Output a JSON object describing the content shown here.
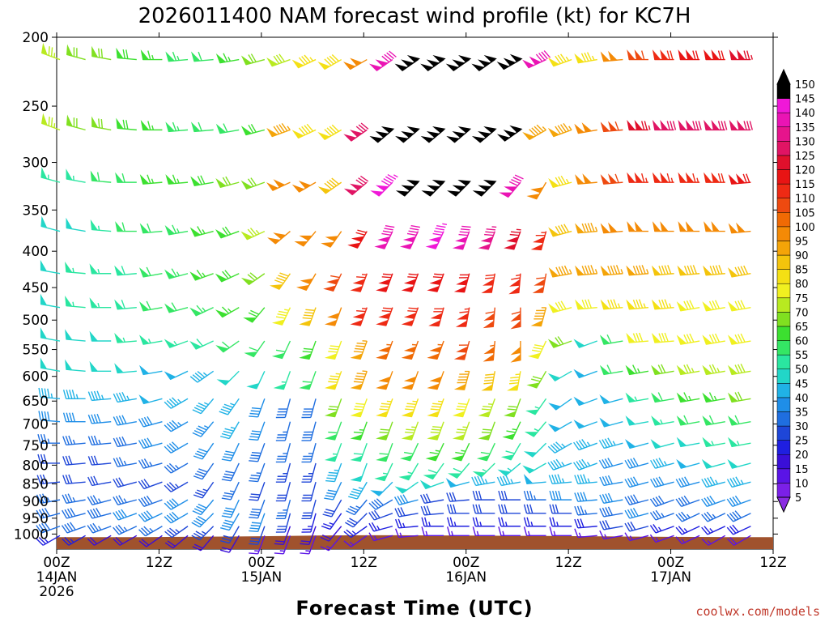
{
  "chart_data": {
    "type": "wind-barb",
    "title": "2026011400 NAM forecast wind profile (kt) for KC7H",
    "xlabel": "Forecast Time (UTC)",
    "credit": "coolwx.com/models",
    "y_ticks": [
      "200",
      "250",
      "300",
      "350",
      "400",
      "450",
      "500",
      "550",
      "600",
      "650",
      "700",
      "750",
      "800",
      "850",
      "900",
      "950",
      "1000"
    ],
    "y_values": [
      200,
      250,
      300,
      350,
      400,
      450,
      500,
      550,
      600,
      650,
      700,
      750,
      800,
      850,
      900,
      950,
      1000
    ],
    "x_ticks": [
      {
        "hour": 0,
        "label": "00Z",
        "date": "14JAN",
        "year": "2026"
      },
      {
        "hour": 12,
        "label": "12Z",
        "date": "",
        "year": ""
      },
      {
        "hour": 24,
        "label": "00Z",
        "date": "15JAN",
        "year": ""
      },
      {
        "hour": 36,
        "label": "12Z",
        "date": "",
        "year": ""
      },
      {
        "hour": 48,
        "label": "00Z",
        "date": "16JAN",
        "year": ""
      },
      {
        "hour": 60,
        "label": "12Z",
        "date": "",
        "year": ""
      },
      {
        "hour": 72,
        "label": "00Z",
        "date": "17JAN",
        "year": ""
      },
      {
        "hour": 84,
        "label": "12Z",
        "date": "",
        "year": ""
      }
    ],
    "xlim": [
      0,
      84
    ],
    "colorbar": {
      "levels": [
        5,
        10,
        15,
        20,
        25,
        30,
        35,
        40,
        45,
        50,
        55,
        60,
        65,
        70,
        75,
        80,
        85,
        90,
        95,
        100,
        105,
        110,
        115,
        120,
        125,
        130,
        135,
        140,
        145,
        150
      ],
      "colors": [
        "#8a2be2",
        "#7b20e8",
        "#5a14e6",
        "#3a0fd8",
        "#1f1fe0",
        "#1e46d8",
        "#1f6ee0",
        "#1f8ee8",
        "#20b2e6",
        "#22d6c8",
        "#2ae6a0",
        "#34e664",
        "#3ce030",
        "#80e020",
        "#b8ea20",
        "#f0f020",
        "#f4e014",
        "#f4c40c",
        "#f4a408",
        "#f48a06",
        "#f06a04",
        "#ee4a10",
        "#ee2a14",
        "#e81414",
        "#e0102c",
        "#e01464",
        "#e6148c",
        "#ea14b4",
        "#f018d8",
        "#000000"
      ]
    },
    "terrain_color": "#a0522d",
    "series_note": "Wind barbs at 3-hour steps across pressure levels 200-1000 mb",
    "barbs": {
      "hours": [
        0,
        3,
        6,
        9,
        12,
        15,
        18,
        21,
        24,
        27,
        30,
        33,
        36,
        39,
        42,
        45,
        48,
        51,
        54,
        57,
        60,
        63,
        66,
        69,
        72,
        75,
        78,
        81,
        84
      ],
      "levels": [
        215,
        270,
        320,
        375,
        430,
        480,
        535,
        590,
        645,
        695,
        745,
        795,
        845,
        895,
        935,
        975,
        1005
      ],
      "speed": [
        [
          75,
          70,
          70,
          68,
          65,
          63,
          60,
          65,
          70,
          78,
          85,
          88,
          100,
          140,
          150,
          150,
          150,
          150,
          150,
          140,
          85,
          85,
          100,
          110,
          118,
          120,
          122,
          125,
          120
        ],
        [
          75,
          70,
          70,
          68,
          65,
          63,
          60,
          60,
          68,
          95,
          88,
          88,
          130,
          150,
          150,
          150,
          150,
          150,
          150,
          95,
          95,
          100,
          110,
          125,
          130,
          130,
          130,
          132,
          135
        ],
        [
          55,
          55,
          60,
          62,
          65,
          66,
          68,
          70,
          72,
          100,
          100,
          90,
          130,
          145,
          150,
          150,
          150,
          150,
          140,
          100,
          85,
          100,
          110,
          115,
          115,
          115,
          118,
          120,
          120
        ],
        [
          50,
          50,
          55,
          60,
          62,
          64,
          66,
          68,
          75,
          100,
          100,
          100,
          120,
          140,
          140,
          145,
          140,
          135,
          125,
          115,
          90,
          95,
          100,
          100,
          100,
          100,
          100,
          100,
          100
        ],
        [
          50,
          55,
          55,
          58,
          62,
          64,
          66,
          68,
          72,
          92,
          100,
          110,
          115,
          120,
          120,
          120,
          120,
          118,
          115,
          110,
          95,
          95,
          95,
          95,
          90,
          90,
          90,
          90,
          90
        ],
        [
          50,
          55,
          55,
          58,
          60,
          62,
          64,
          66,
          68,
          84,
          90,
          100,
          115,
          118,
          118,
          118,
          115,
          112,
          110,
          95,
          80,
          80,
          85,
          85,
          85,
          80,
          80,
          80,
          80
        ],
        [
          50,
          50,
          52,
          55,
          55,
          56,
          58,
          60,
          60,
          60,
          68,
          80,
          95,
          105,
          105,
          105,
          110,
          105,
          100,
          80,
          70,
          50,
          60,
          80,
          80,
          80,
          80,
          80,
          80
        ],
        [
          50,
          50,
          50,
          50,
          48,
          48,
          46,
          50,
          52,
          55,
          60,
          85,
          95,
          100,
          100,
          100,
          95,
          90,
          85,
          70,
          50,
          48,
          60,
          65,
          70,
          75,
          75,
          78,
          80
        ],
        [
          45,
          45,
          45,
          45,
          48,
          46,
          45,
          45,
          40,
          38,
          38,
          70,
          80,
          85,
          85,
          85,
          80,
          75,
          70,
          55,
          48,
          48,
          48,
          55,
          60,
          65,
          65,
          70,
          70
        ],
        [
          40,
          40,
          40,
          40,
          42,
          44,
          44,
          45,
          40,
          36,
          38,
          60,
          65,
          70,
          75,
          78,
          75,
          70,
          65,
          55,
          48,
          48,
          48,
          50,
          55,
          60,
          60,
          60,
          60
        ],
        [
          35,
          35,
          35,
          38,
          40,
          40,
          40,
          40,
          38,
          35,
          36,
          55,
          58,
          60,
          62,
          65,
          65,
          62,
          58,
          50,
          45,
          45,
          45,
          48,
          50,
          52,
          55,
          55,
          55
        ],
        [
          32,
          32,
          32,
          35,
          35,
          36,
          38,
          38,
          35,
          34,
          34,
          45,
          50,
          55,
          56,
          58,
          58,
          56,
          54,
          50,
          45,
          45,
          42,
          42,
          45,
          48,
          50,
          50,
          52
        ],
        [
          30,
          30,
          30,
          30,
          32,
          34,
          34,
          35,
          30,
          32,
          30,
          40,
          45,
          48,
          50,
          52,
          48,
          45,
          45,
          48,
          45,
          45,
          42,
          40,
          40,
          42,
          45,
          45,
          48
        ],
        [
          35,
          35,
          35,
          36,
          38,
          40,
          40,
          40,
          38,
          35,
          30,
          30,
          35,
          38,
          40,
          30,
          30,
          30,
          32,
          35,
          40,
          40,
          40,
          38,
          38,
          38,
          40,
          40,
          42
        ],
        [
          38,
          38,
          38,
          40,
          40,
          42,
          42,
          40,
          40,
          30,
          25,
          25,
          30,
          32,
          30,
          30,
          30,
          30,
          30,
          30,
          32,
          35,
          38,
          40,
          35,
          35,
          35,
          38,
          40
        ],
        [
          38,
          38,
          36,
          36,
          36,
          34,
          34,
          30,
          30,
          20,
          20,
          20,
          25,
          25,
          25,
          25,
          25,
          25,
          25,
          25,
          25,
          28,
          30,
          30,
          25,
          25,
          25,
          28,
          30
        ],
        [
          25,
          25,
          22,
          22,
          22,
          22,
          20,
          20,
          15,
          15,
          15,
          15,
          15,
          15,
          15,
          15,
          15,
          15,
          15,
          15,
          15,
          15,
          15,
          15,
          15,
          15,
          15,
          18,
          20
        ]
      ],
      "direction": [
        [
          290,
          285,
          280,
          275,
          270,
          265,
          265,
          260,
          255,
          250,
          245,
          240,
          240,
          235,
          235,
          235,
          235,
          235,
          240,
          245,
          250,
          260,
          265,
          270,
          270,
          270,
          270,
          270,
          270
        ],
        [
          290,
          285,
          280,
          275,
          270,
          265,
          265,
          260,
          255,
          250,
          245,
          240,
          235,
          230,
          230,
          230,
          230,
          230,
          235,
          240,
          250,
          260,
          265,
          270,
          270,
          270,
          270,
          270,
          270
        ],
        [
          285,
          280,
          275,
          270,
          265,
          265,
          260,
          255,
          250,
          245,
          240,
          235,
          230,
          225,
          225,
          225,
          225,
          225,
          220,
          210,
          255,
          265,
          265,
          270,
          270,
          270,
          270,
          265,
          265
        ],
        [
          285,
          280,
          275,
          270,
          265,
          260,
          255,
          250,
          245,
          230,
          220,
          215,
          210,
          205,
          205,
          205,
          200,
          200,
          200,
          195,
          255,
          265,
          265,
          270,
          270,
          270,
          270,
          265,
          265
        ],
        [
          280,
          275,
          270,
          265,
          260,
          255,
          250,
          245,
          235,
          215,
          210,
          205,
          200,
          200,
          200,
          200,
          195,
          190,
          185,
          190,
          260,
          265,
          265,
          265,
          265,
          265,
          265,
          260,
          260
        ],
        [
          280,
          275,
          270,
          265,
          260,
          255,
          245,
          240,
          220,
          205,
          200,
          200,
          200,
          200,
          200,
          195,
          190,
          185,
          180,
          195,
          255,
          265,
          265,
          265,
          265,
          260,
          260,
          260,
          260
        ],
        [
          280,
          275,
          270,
          265,
          260,
          250,
          245,
          235,
          215,
          205,
          200,
          200,
          200,
          200,
          200,
          200,
          195,
          185,
          180,
          205,
          250,
          250,
          260,
          265,
          265,
          260,
          260,
          260,
          260
        ],
        [
          280,
          275,
          270,
          265,
          260,
          245,
          235,
          225,
          205,
          200,
          200,
          200,
          200,
          200,
          200,
          200,
          195,
          190,
          190,
          210,
          240,
          250,
          260,
          260,
          260,
          260,
          260,
          260,
          260
        ],
        [
          275,
          270,
          265,
          260,
          255,
          240,
          220,
          215,
          200,
          195,
          195,
          200,
          200,
          200,
          200,
          200,
          200,
          200,
          200,
          215,
          235,
          250,
          255,
          260,
          260,
          260,
          260,
          260,
          260
        ],
        [
          275,
          270,
          265,
          260,
          255,
          240,
          220,
          210,
          200,
          195,
          195,
          200,
          200,
          200,
          200,
          200,
          200,
          200,
          205,
          220,
          240,
          250,
          255,
          260,
          260,
          260,
          260,
          260,
          260
        ],
        [
          270,
          265,
          265,
          260,
          255,
          240,
          215,
          205,
          200,
          195,
          195,
          200,
          200,
          200,
          205,
          205,
          205,
          205,
          210,
          225,
          240,
          250,
          255,
          255,
          255,
          260,
          260,
          260,
          260
        ],
        [
          270,
          265,
          265,
          260,
          255,
          240,
          215,
          205,
          200,
          195,
          195,
          200,
          200,
          205,
          210,
          215,
          220,
          225,
          230,
          240,
          250,
          250,
          255,
          255,
          255,
          255,
          255,
          255,
          260
        ],
        [
          265,
          265,
          260,
          255,
          250,
          240,
          215,
          205,
          200,
          195,
          195,
          205,
          210,
          225,
          235,
          250,
          255,
          260,
          260,
          265,
          265,
          265,
          260,
          255,
          255,
          255,
          255,
          255,
          255
        ],
        [
          260,
          260,
          255,
          255,
          250,
          240,
          220,
          205,
          200,
          195,
          195,
          210,
          220,
          240,
          255,
          260,
          265,
          270,
          270,
          270,
          270,
          265,
          260,
          255,
          250,
          250,
          250,
          250,
          250
        ],
        [
          255,
          255,
          255,
          250,
          245,
          240,
          225,
          210,
          200,
          195,
          195,
          215,
          225,
          250,
          260,
          265,
          270,
          270,
          270,
          270,
          270,
          265,
          260,
          255,
          250,
          245,
          245,
          245,
          245
        ],
        [
          250,
          250,
          250,
          245,
          240,
          235,
          225,
          210,
          200,
          200,
          200,
          220,
          235,
          255,
          265,
          270,
          270,
          270,
          270,
          270,
          270,
          265,
          260,
          255,
          250,
          245,
          245,
          245,
          245
        ],
        [
          240,
          240,
          240,
          240,
          235,
          230,
          220,
          210,
          200,
          200,
          200,
          220,
          235,
          255,
          265,
          270,
          270,
          270,
          270,
          270,
          270,
          265,
          260,
          255,
          250,
          245,
          240,
          240,
          240
        ]
      ]
    }
  }
}
